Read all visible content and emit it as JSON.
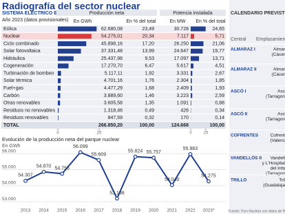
{
  "title": "Radiografía del sector nuclear",
  "table": {
    "title": "SISTEMA ELÉCTRICO EN ESPAÑA",
    "subtitle": "Año 2023 (datos provisionales)",
    "prod_header": "Producción neta",
    "prod_unit": "En GWh",
    "prod_pct_header": "En % del total",
    "pot_header": "Potencia instalada",
    "pot_unit": "En MW",
    "pot_pct_header": "En % del total",
    "bar_color": "#23408e",
    "highlight_color": "#d93a3a",
    "bar_axis": {
      "xlim": [
        0,
        25
      ],
      "xticks": [
        0,
        25
      ]
    },
    "rows": [
      {
        "name": "Eólica",
        "prod": "62.680,08",
        "prod_pct": {
          "value": 23.49,
          "label": "23,49"
        },
        "pot": "30.728",
        "pot_pct": {
          "value": 24.65,
          "label": "24,65"
        }
      },
      {
        "name": "Nuclear",
        "highlight": true,
        "prod": "54.275,01",
        "prod_pct": {
          "value": 20.34,
          "label": "20,34"
        },
        "pot": "7.117",
        "pot_pct": {
          "value": 5.71,
          "label": "5,71"
        }
      },
      {
        "name": "Ciclo combinado",
        "prod": "45.898,16",
        "prod_pct": {
          "value": 17.2,
          "label": "17,20"
        },
        "pot": "26.250",
        "pot_pct": {
          "value": 21.06,
          "label": "21,06"
        }
      },
      {
        "name": "Solar fotovoltaica",
        "prod": "37.331,48",
        "prod_pct": {
          "value": 13.99,
          "label": "13,99"
        },
        "pot": "24.647",
        "pot_pct": {
          "value": 19.77,
          "label": "19,77"
        }
      },
      {
        "name": "Hidráulica",
        "prod": "25.437,98",
        "prod_pct": {
          "value": 9.53,
          "label": "9,53"
        },
        "pot": "17.097",
        "pot_pct": {
          "value": 13.71,
          "label": "13,71"
        }
      },
      {
        "name": "Cogeneración",
        "prod": "17.270,70",
        "prod_pct": {
          "value": 6.47,
          "label": "6,47"
        },
        "pot": "5.617",
        "pot_pct": {
          "value": 4.51,
          "label": "4,51"
        }
      },
      {
        "name": "Turbinación de bombeo",
        "prod": "5.117,11",
        "prod_pct": {
          "value": 1.92,
          "label": "1,92"
        },
        "pot": "3.331",
        "pot_pct": {
          "value": 2.67,
          "label": "2,67"
        }
      },
      {
        "name": "Solar térmica",
        "prod": "4.701,16",
        "prod_pct": {
          "value": 1.76,
          "label": "1,76"
        },
        "pot": "2.304",
        "pot_pct": {
          "value": 1.85,
          "label": "1,85"
        }
      },
      {
        "name": "Fuel+gas",
        "prod": "4.477,29",
        "prod_pct": {
          "value": 1.68,
          "label": "1,68"
        },
        "pot": "2.409",
        "pot_pct": {
          "value": 1.93,
          "label": "1,93"
        }
      },
      {
        "name": "Carbón",
        "prod": "3.889,60",
        "prod_pct": {
          "value": 1.46,
          "label": "1,46"
        },
        "pot": "3.223",
        "pot_pct": {
          "value": 2.59,
          "label": "2,59"
        }
      },
      {
        "name": "Otras renovables",
        "prod": "3.605,58",
        "prod_pct": {
          "value": 1.35,
          "label": "1,35"
        },
        "pot": "1.091",
        "pot_pct": {
          "value": 0.88,
          "label": "0,88"
        }
      },
      {
        "name": "Residuos no renovables",
        "prod": "1.318,46",
        "prod_pct": {
          "value": 0.49,
          "label": "0,49"
        },
        "pot": "426",
        "pot_pct": {
          "value": 0.34,
          "label": "0,34"
        }
      },
      {
        "name": "Residuos renovables",
        "prod": "847,59",
        "prod_pct": {
          "value": 0.32,
          "label": "0,32"
        },
        "pot": "170",
        "pot_pct": {
          "value": 0.14,
          "label": "0,14"
        }
      }
    ],
    "total": {
      "name": "TOTAL",
      "prod": "266.850,20",
      "prod_pct": "100,00",
      "pot": "124.668",
      "pot_pct": "100,00"
    }
  },
  "chart_data": {
    "type": "line",
    "title": "Evolución de la producción neta del parque nuclear",
    "subtitle": "En GWh",
    "categories": [
      "2013",
      "2014",
      "2015",
      "2016",
      "2017",
      "2018",
      "2019",
      "2020",
      "2021",
      "2022",
      "2023*"
    ],
    "values": [
      54307,
      54870,
      54755,
      56099,
      55609,
      53198,
      55824,
      55757,
      54040,
      55983,
      54275
    ],
    "value_labels": [
      "54.307",
      "54.870",
      "54.755",
      "56.099",
      "55.609",
      "53.198",
      "55.824",
      "55.757",
      "54.040",
      "55.983",
      "54.275"
    ],
    "color": "#1d3f8f",
    "ylim": [
      52700,
      56500
    ],
    "grid": true,
    "yticks": [
      {
        "value": 53000,
        "label": "53.000"
      },
      {
        "value": 54000,
        "label": "54.000"
      },
      {
        "value": 55000,
        "label": "55.000"
      },
      {
        "value": 56000,
        "label": "56.000"
      }
    ]
  },
  "plants": {
    "title": "CALENDARIO PREVISTO D",
    "col_central": "Central",
    "col_location": "Emplazamien",
    "rows": [
      {
        "central": "ALMARAZ I",
        "location": [
          "Almar",
          "(Cácer"
        ]
      },
      {
        "central": "ALMARAZ II",
        "location": [
          "Almar",
          "(Cácer"
        ]
      },
      {
        "central": "ASCÓ I",
        "location": [
          "Asc",
          "(Tarragon"
        ]
      },
      {
        "central": "ASCÓ II",
        "location": [
          "Asc",
          "(Tarragon"
        ]
      },
      {
        "central": "COFRENTES",
        "location": [
          "Cofrent",
          "(Valenc"
        ]
      },
      {
        "central": "VANDELLÒS II",
        "location": [
          "Vandell",
          "y L'Hospital",
          "del Infa",
          "(Tarragon"
        ]
      },
      {
        "central": "TRILLO",
        "location": [
          "Tril",
          "(Guadalaja"
        ]
      }
    ],
    "source": "Fuente: Foro Nuclear con datos de Re"
  }
}
